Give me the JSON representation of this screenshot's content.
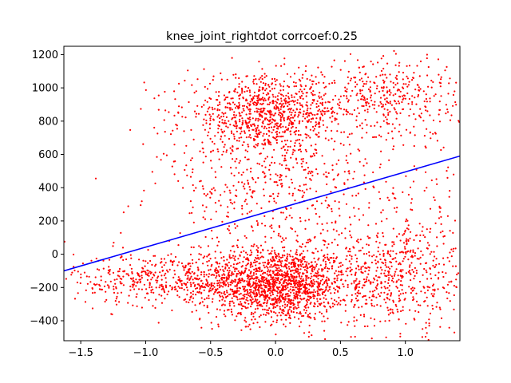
{
  "chart_data": {
    "type": "scatter",
    "title": "knee_joint_rightdot corrcoef:0.25",
    "xlabel": "",
    "ylabel": "",
    "xlim": [
      -1.63,
      1.42
    ],
    "ylim": [
      -520,
      1250
    ],
    "x_ticks": [
      -1.5,
      -1.0,
      -0.5,
      0.0,
      0.5,
      1.0
    ],
    "x_tick_labels": [
      "−1.5",
      "−1.0",
      "−0.5",
      "0.0",
      "0.5",
      "1.0"
    ],
    "y_ticks": [
      -400,
      -200,
      0,
      200,
      400,
      600,
      800,
      1000,
      1200
    ],
    "y_tick_labels": [
      "−400",
      "−200",
      "0",
      "200",
      "400",
      "600",
      "800",
      "1000",
      "1200"
    ],
    "grid": false,
    "series": [
      {
        "kind": "scatter",
        "color": "#ff0000",
        "clusters": [
          {
            "cx": 0.0,
            "cy": -180,
            "sx": 0.28,
            "sy": 110,
            "n": 1500
          },
          {
            "cx": -0.85,
            "cy": -150,
            "sx": 0.35,
            "sy": 80,
            "n": 450
          },
          {
            "cx": 0.8,
            "cy": -150,
            "sx": 0.35,
            "sy": 150,
            "n": 450
          },
          {
            "cx": -0.05,
            "cy": 850,
            "sx": 0.32,
            "sy": 110,
            "n": 900
          },
          {
            "cx": 0.9,
            "cy": 950,
            "sx": 0.25,
            "sy": 130,
            "n": 350
          },
          {
            "cx": 0.0,
            "cy": 400,
            "sx": 0.45,
            "sy": 220,
            "n": 550
          },
          {
            "cx": 1.1,
            "cy": 0,
            "sx": 0.25,
            "sy": 250,
            "n": 250
          }
        ]
      },
      {
        "kind": "line",
        "name": "",
        "color": "#0000ff",
        "x": [
          -1.63,
          1.42
        ],
        "y": [
          -100,
          590
        ]
      }
    ]
  }
}
